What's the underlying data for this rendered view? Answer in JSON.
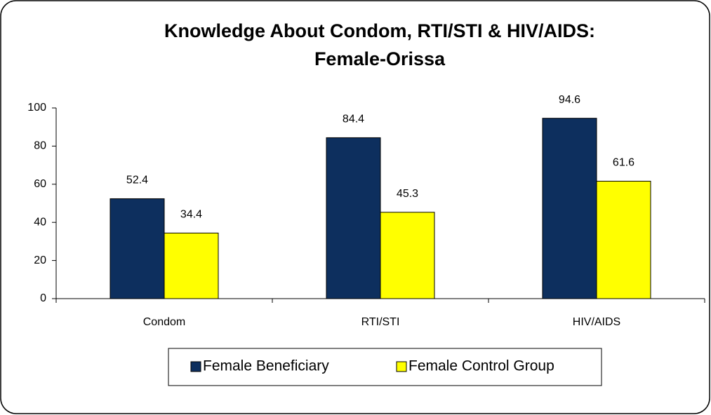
{
  "chart_data": {
    "type": "bar",
    "title": [
      "Knowledge About Condom, RTI/STI & HIV/AIDS:",
      "Female-Orissa"
    ],
    "categories": [
      "Condom",
      "RTI/STI",
      "HIV/AIDS"
    ],
    "series": [
      {
        "name": "Female Beneficiary",
        "color": "#0d2f5e",
        "values": [
          52.4,
          84.4,
          94.6
        ]
      },
      {
        "name": "Female Control Group",
        "color": "#ffff00",
        "values": [
          34.4,
          45.3,
          61.6
        ]
      }
    ],
    "ylim": [
      0,
      100
    ],
    "yticks": [
      0,
      20,
      40,
      60,
      80,
      100
    ],
    "grid": false,
    "legend": "bottom"
  }
}
